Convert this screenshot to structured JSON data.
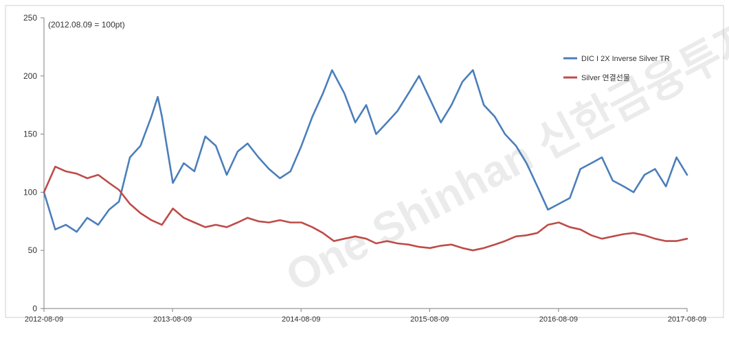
{
  "chart_data": {
    "type": "line",
    "annotation": "(2012.08.09 = 100pt)",
    "xlabel": "",
    "ylabel": "",
    "ylim": [
      0,
      250
    ],
    "yticks": [
      0,
      50,
      100,
      150,
      200,
      250
    ],
    "xlim": [
      "2012-08-09",
      "2017-08-09"
    ],
    "xticks": [
      "2012-08-09",
      "2013-08-09",
      "2014-08-09",
      "2015-08-09",
      "2016-08-09",
      "2017-08-09"
    ],
    "grid": false,
    "legend_position": "top-right",
    "watermark": "One Shinhan 신한금융투자",
    "series": [
      {
        "name": "DIC I 2X Inverse Silver TR",
        "color": "#4a7ebb",
        "x": [
          "2012-08-09",
          "2012-09-10",
          "2012-10-10",
          "2012-11-10",
          "2012-12-10",
          "2013-01-10",
          "2013-02-10",
          "2013-03-10",
          "2013-04-10",
          "2013-05-10",
          "2013-06-10",
          "2013-06-28",
          "2013-07-10",
          "2013-08-10",
          "2013-09-10",
          "2013-10-10",
          "2013-11-10",
          "2013-12-10",
          "2014-01-10",
          "2014-02-10",
          "2014-03-10",
          "2014-04-10",
          "2014-05-10",
          "2014-06-10",
          "2014-07-10",
          "2014-08-10",
          "2014-09-10",
          "2014-10-10",
          "2014-11-05",
          "2014-12-10",
          "2015-01-10",
          "2015-02-10",
          "2015-03-10",
          "2015-04-10",
          "2015-05-10",
          "2015-06-10",
          "2015-07-10",
          "2015-08-10",
          "2015-09-10",
          "2015-10-10",
          "2015-11-10",
          "2015-12-10",
          "2016-01-10",
          "2016-02-10",
          "2016-03-10",
          "2016-04-10",
          "2016-05-10",
          "2016-06-10",
          "2016-07-10",
          "2016-08-10",
          "2016-09-10",
          "2016-10-10",
          "2016-11-10",
          "2016-12-10",
          "2017-01-10",
          "2017-02-10",
          "2017-03-10",
          "2017-04-10",
          "2017-05-10",
          "2017-06-10",
          "2017-07-10",
          "2017-08-09"
        ],
        "values": [
          100,
          68,
          72,
          66,
          78,
          72,
          85,
          92,
          130,
          140,
          165,
          182,
          165,
          108,
          125,
          118,
          148,
          140,
          115,
          135,
          142,
          130,
          120,
          112,
          118,
          140,
          165,
          185,
          205,
          185,
          160,
          175,
          150,
          160,
          170,
          185,
          200,
          180,
          160,
          175,
          195,
          205,
          175,
          165,
          150,
          140,
          125,
          105,
          85,
          90,
          95,
          120,
          125,
          130,
          110,
          105,
          100,
          115,
          120,
          105,
          130,
          115
        ]
      },
      {
        "name": "Silver 연결선물",
        "color": "#be4b48",
        "x": [
          "2012-08-09",
          "2012-09-10",
          "2012-10-10",
          "2012-11-10",
          "2012-12-10",
          "2013-01-10",
          "2013-02-10",
          "2013-03-10",
          "2013-04-10",
          "2013-05-10",
          "2013-06-10",
          "2013-07-10",
          "2013-08-10",
          "2013-09-10",
          "2013-10-10",
          "2013-11-10",
          "2013-12-10",
          "2014-01-10",
          "2014-02-10",
          "2014-03-10",
          "2014-04-10",
          "2014-05-10",
          "2014-06-10",
          "2014-07-10",
          "2014-08-10",
          "2014-09-10",
          "2014-10-10",
          "2014-11-10",
          "2014-12-10",
          "2015-01-10",
          "2015-02-10",
          "2015-03-10",
          "2015-04-10",
          "2015-05-10",
          "2015-06-10",
          "2015-07-10",
          "2015-08-10",
          "2015-09-10",
          "2015-10-10",
          "2015-11-10",
          "2015-12-10",
          "2016-01-10",
          "2016-02-10",
          "2016-03-10",
          "2016-04-10",
          "2016-05-10",
          "2016-06-10",
          "2016-07-10",
          "2016-08-10",
          "2016-09-10",
          "2016-10-10",
          "2016-11-10",
          "2016-12-10",
          "2017-01-10",
          "2017-02-10",
          "2017-03-10",
          "2017-04-10",
          "2017-05-10",
          "2017-06-10",
          "2017-07-10",
          "2017-08-09"
        ],
        "values": [
          100,
          122,
          118,
          116,
          112,
          115,
          108,
          102,
          90,
          82,
          76,
          72,
          86,
          78,
          74,
          70,
          72,
          70,
          74,
          78,
          75,
          74,
          76,
          74,
          74,
          70,
          65,
          58,
          60,
          62,
          60,
          56,
          58,
          56,
          55,
          53,
          52,
          54,
          55,
          52,
          50,
          52,
          55,
          58,
          62,
          63,
          65,
          72,
          74,
          70,
          68,
          63,
          60,
          62,
          64,
          65,
          63,
          60,
          58,
          58,
          60
        ]
      }
    ]
  }
}
